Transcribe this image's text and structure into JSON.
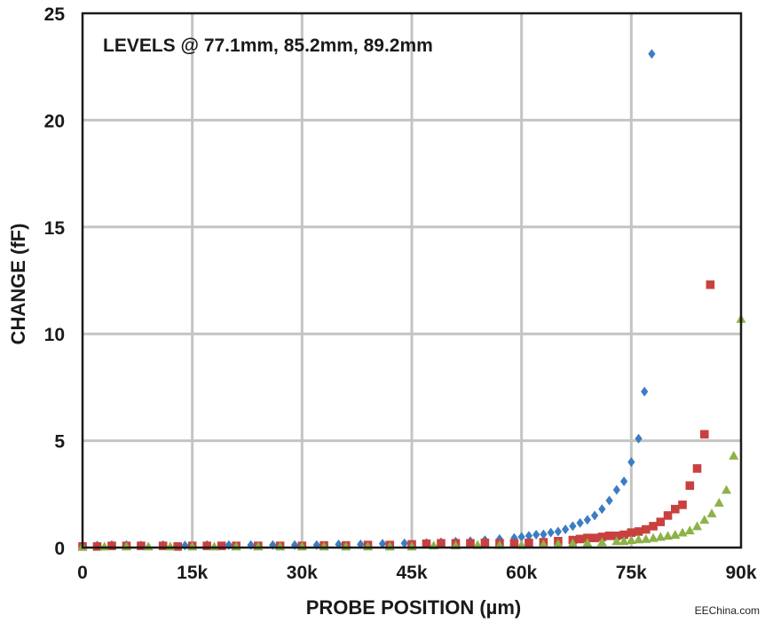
{
  "chart_data": {
    "type": "scatter",
    "title": "",
    "annotation": "LEVELS @ 77.1mm, 85.2mm, 89.2mm",
    "xlabel": "PROBE POSITION (µm)",
    "ylabel": "CHANGE (fF)",
    "xlim": [
      0,
      90000
    ],
    "ylim": [
      0,
      25
    ],
    "x_ticks": [
      0,
      15000,
      30000,
      45000,
      60000,
      75000,
      90000
    ],
    "x_tick_labels": [
      "0",
      "15k",
      "30k",
      "45k",
      "60k",
      "75k",
      "90k"
    ],
    "y_ticks": [
      0,
      5,
      10,
      15,
      20,
      25
    ],
    "y_tick_labels": [
      "0",
      "5",
      "10",
      "15",
      "20",
      "25"
    ],
    "grid": true,
    "series": [
      {
        "marker": "diamond",
        "color": "#3b7dc4",
        "points": [
          [
            0,
            0.1
          ],
          [
            2000,
            0.1
          ],
          [
            4000,
            0.12
          ],
          [
            6000,
            0.12
          ],
          [
            8000,
            0.1
          ],
          [
            11000,
            0.12
          ],
          [
            14000,
            0.1
          ],
          [
            17000,
            0.12
          ],
          [
            20000,
            0.12
          ],
          [
            23000,
            0.12
          ],
          [
            26000,
            0.12
          ],
          [
            29000,
            0.12
          ],
          [
            32000,
            0.12
          ],
          [
            35000,
            0.15
          ],
          [
            38000,
            0.15
          ],
          [
            41000,
            0.18
          ],
          [
            44000,
            0.2
          ],
          [
            47000,
            0.22
          ],
          [
            49000,
            0.25
          ],
          [
            51000,
            0.28
          ],
          [
            53000,
            0.3
          ],
          [
            55000,
            0.35
          ],
          [
            57000,
            0.4
          ],
          [
            59000,
            0.45
          ],
          [
            60000,
            0.5
          ],
          [
            61000,
            0.55
          ],
          [
            62000,
            0.6
          ],
          [
            63000,
            0.62
          ],
          [
            64000,
            0.7
          ],
          [
            65000,
            0.75
          ],
          [
            66000,
            0.85
          ],
          [
            67000,
            1.0
          ],
          [
            68000,
            1.15
          ],
          [
            69000,
            1.3
          ],
          [
            70000,
            1.5
          ],
          [
            71000,
            1.8
          ],
          [
            72000,
            2.2
          ],
          [
            73000,
            2.7
          ],
          [
            74000,
            3.1
          ],
          [
            75000,
            4.0
          ],
          [
            76000,
            5.1
          ],
          [
            76800,
            7.3
          ],
          [
            77800,
            23.1
          ]
        ]
      },
      {
        "marker": "square",
        "color": "#c8413f",
        "points": [
          [
            0,
            0.05
          ],
          [
            2000,
            0.05
          ],
          [
            4000,
            0.08
          ],
          [
            6000,
            0.08
          ],
          [
            8000,
            0.08
          ],
          [
            11000,
            0.08
          ],
          [
            13000,
            0.05
          ],
          [
            15000,
            0.08
          ],
          [
            17000,
            0.08
          ],
          [
            19000,
            0.08
          ],
          [
            21000,
            0.08
          ],
          [
            24000,
            0.08
          ],
          [
            27000,
            0.08
          ],
          [
            30000,
            0.08
          ],
          [
            33000,
            0.1
          ],
          [
            36000,
            0.1
          ],
          [
            39000,
            0.12
          ],
          [
            42000,
            0.12
          ],
          [
            45000,
            0.15
          ],
          [
            47000,
            0.18
          ],
          [
            49000,
            0.2
          ],
          [
            51000,
            0.2
          ],
          [
            53000,
            0.2
          ],
          [
            55000,
            0.22
          ],
          [
            57000,
            0.2
          ],
          [
            59000,
            0.2
          ],
          [
            61000,
            0.22
          ],
          [
            63000,
            0.25
          ],
          [
            65000,
            0.3
          ],
          [
            67000,
            0.35
          ],
          [
            68000,
            0.4
          ],
          [
            69000,
            0.45
          ],
          [
            70000,
            0.45
          ],
          [
            71000,
            0.5
          ],
          [
            72000,
            0.55
          ],
          [
            73000,
            0.55
          ],
          [
            74000,
            0.6
          ],
          [
            75000,
            0.7
          ],
          [
            76000,
            0.75
          ],
          [
            77000,
            0.85
          ],
          [
            78000,
            1.0
          ],
          [
            79000,
            1.2
          ],
          [
            80000,
            1.5
          ],
          [
            81000,
            1.8
          ],
          [
            82000,
            2.0
          ],
          [
            83000,
            2.9
          ],
          [
            84000,
            3.7
          ],
          [
            85000,
            5.3
          ],
          [
            85800,
            12.3
          ]
        ]
      },
      {
        "marker": "triangle",
        "color": "#8cb347",
        "points": [
          [
            0,
            0.05
          ],
          [
            3000,
            0.05
          ],
          [
            6000,
            0.05
          ],
          [
            9000,
            0.05
          ],
          [
            12000,
            0.05
          ],
          [
            15000,
            0.05
          ],
          [
            18000,
            0.05
          ],
          [
            21000,
            0.05
          ],
          [
            24000,
            0.05
          ],
          [
            27000,
            0.05
          ],
          [
            30000,
            0.05
          ],
          [
            33000,
            0.05
          ],
          [
            36000,
            0.05
          ],
          [
            39000,
            0.05
          ],
          [
            42000,
            0.05
          ],
          [
            45000,
            0.05
          ],
          [
            48000,
            0.1
          ],
          [
            51000,
            0.1
          ],
          [
            54000,
            0.12
          ],
          [
            57000,
            0.12
          ],
          [
            60000,
            0.12
          ],
          [
            63000,
            0.15
          ],
          [
            65000,
            0.18
          ],
          [
            67000,
            0.2
          ],
          [
            69000,
            0.22
          ],
          [
            71000,
            0.25
          ],
          [
            73000,
            0.3
          ],
          [
            74000,
            0.3
          ],
          [
            75000,
            0.35
          ],
          [
            76000,
            0.38
          ],
          [
            77000,
            0.4
          ],
          [
            78000,
            0.45
          ],
          [
            79000,
            0.5
          ],
          [
            80000,
            0.55
          ],
          [
            81000,
            0.6
          ],
          [
            82000,
            0.7
          ],
          [
            83000,
            0.8
          ],
          [
            84000,
            1.0
          ],
          [
            85000,
            1.3
          ],
          [
            86000,
            1.6
          ],
          [
            87000,
            2.1
          ],
          [
            88000,
            2.7
          ],
          [
            89000,
            4.3
          ],
          [
            90000,
            10.7
          ]
        ]
      }
    ]
  },
  "watermark": "EEChina.com"
}
